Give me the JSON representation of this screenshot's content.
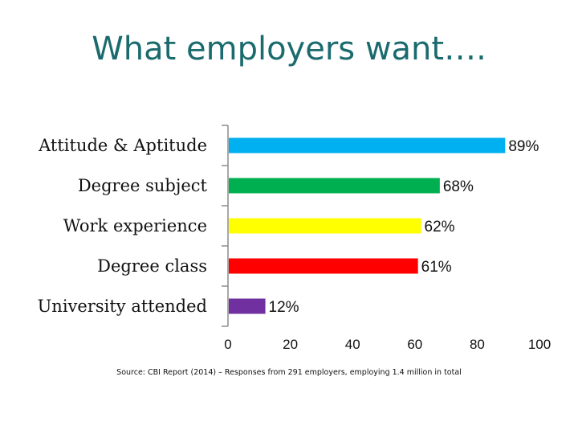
{
  "slide": {
    "title": "What employers want….",
    "source": "Source: CBI Report (2014) – Responses from 291 employers, employing 1.4 million in total"
  },
  "chart_data": {
    "type": "bar",
    "orientation": "horizontal",
    "categories": [
      "Attitude & Aptitude",
      "Degree subject",
      "Work experience",
      "Degree class",
      "University attended"
    ],
    "values": [
      89,
      68,
      62,
      61,
      12
    ],
    "data_labels": [
      "89%",
      "68%",
      "62%",
      "61%",
      "12%"
    ],
    "colors": [
      "#00b0f0",
      "#00b050",
      "#ffff00",
      "#ff0000",
      "#7030a0"
    ],
    "xlim": [
      0,
      100
    ],
    "xticks": [
      0,
      20,
      40,
      60,
      80,
      100
    ],
    "grid": false,
    "legend": "none"
  }
}
